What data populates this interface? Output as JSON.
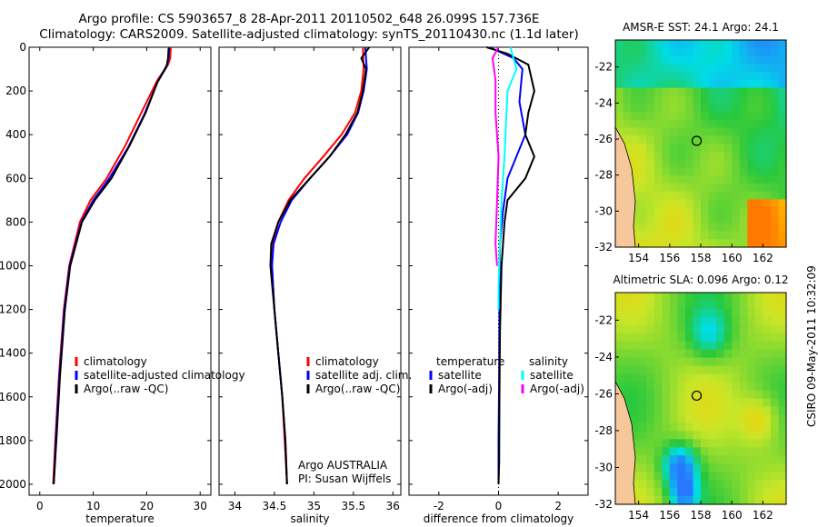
{
  "header": {
    "line1": "Argo profile: CS 5903657_8 28-Apr-2011 20110502_648 26.099S 157.736E",
    "line2": "Climatology: CARS2009. Satellite-adjusted climatology: synTS_20110430.nc (1.1d later)"
  },
  "stamp": "CSIRO 09-May-2011 10:32:09",
  "colors": {
    "climatology": "#ff0000",
    "satellite": "#0000ff",
    "argo": "#000000",
    "salinity_satellite": "#00ffff",
    "salinity_argo": "#ff00ff"
  },
  "chart_data": [
    {
      "type": "line",
      "name": "temperature-panel",
      "xlabel": "temperature",
      "ylabel": "",
      "xlim": [
        -2,
        32
      ],
      "ylim": [
        2050,
        0
      ],
      "xticks": [
        0,
        10,
        20,
        30
      ],
      "yticks": [
        0,
        200,
        400,
        600,
        800,
        1000,
        1200,
        1400,
        1600,
        1800,
        2000
      ],
      "legend": {
        "position": "center-right",
        "entries": [
          "climatology",
          "satellite-adjusted climatology",
          "Argo(..raw -QC)"
        ]
      },
      "series": [
        {
          "name": "climatology",
          "color": "#ff0000",
          "points": [
            [
              24.5,
              0
            ],
            [
              24.4,
              50
            ],
            [
              24.0,
              80
            ],
            [
              22,
              150
            ],
            [
              19,
              300
            ],
            [
              16,
              450
            ],
            [
              12.5,
              600
            ],
            [
              9.5,
              700
            ],
            [
              7.5,
              800
            ],
            [
              5.5,
              1000
            ],
            [
              4.5,
              1200
            ],
            [
              3.6,
              1500
            ],
            [
              2.9,
              1800
            ],
            [
              2.5,
              2000
            ]
          ]
        },
        {
          "name": "satellite-adjusted climatology",
          "color": "#0000ff",
          "points": [
            [
              24.2,
              0
            ],
            [
              24.1,
              50
            ],
            [
              23.8,
              80
            ],
            [
              22,
              160
            ],
            [
              19.5,
              310
            ],
            [
              16.5,
              460
            ],
            [
              13,
              600
            ],
            [
              10,
              700
            ],
            [
              7.8,
              800
            ],
            [
              5.6,
              1000
            ],
            [
              4.6,
              1200
            ],
            [
              3.7,
              1500
            ],
            [
              3.0,
              1800
            ],
            [
              2.6,
              2000
            ]
          ]
        },
        {
          "name": "Argo(..raw -QC)",
          "color": "#000000",
          "points": [
            [
              24.1,
              5
            ],
            [
              24.0,
              50
            ],
            [
              23.7,
              90
            ],
            [
              22,
              160
            ],
            [
              19.8,
              300
            ],
            [
              16.8,
              450
            ],
            [
              13.4,
              600
            ],
            [
              10.3,
              700
            ],
            [
              7.9,
              800
            ],
            [
              5.7,
              1000
            ],
            [
              4.7,
              1200
            ],
            [
              3.8,
              1500
            ],
            [
              3.1,
              1800
            ],
            [
              2.6,
              2000
            ]
          ]
        }
      ]
    },
    {
      "type": "line",
      "name": "salinity-panel",
      "xlabel": "salinity",
      "xlim": [
        33.8,
        36.1
      ],
      "ylim": [
        2050,
        0
      ],
      "xticks": [
        34,
        34.5,
        35,
        35.5,
        36
      ],
      "legend": {
        "position": "center-right",
        "entries": [
          "climatology",
          "satellite adj. clim.",
          "Argo(..raw -QC)"
        ]
      },
      "annotation": [
        "Argo AUSTRALIA",
        "PI: Susan Wijffels"
      ],
      "series": [
        {
          "name": "climatology",
          "color": "#ff0000",
          "points": [
            [
              35.62,
              0
            ],
            [
              35.63,
              100
            ],
            [
              35.6,
              200
            ],
            [
              35.52,
              300
            ],
            [
              35.35,
              400
            ],
            [
              35.12,
              500
            ],
            [
              34.88,
              600
            ],
            [
              34.68,
              700
            ],
            [
              34.55,
              800
            ],
            [
              34.48,
              900
            ],
            [
              34.47,
              1000
            ],
            [
              34.5,
              1200
            ],
            [
              34.55,
              1400
            ],
            [
              34.6,
              1600
            ],
            [
              34.63,
              1800
            ],
            [
              34.66,
              2000
            ]
          ]
        },
        {
          "name": "satellite adj. clim.",
          "color": "#0000ff",
          "points": [
            [
              35.65,
              0
            ],
            [
              35.67,
              100
            ],
            [
              35.63,
              200
            ],
            [
              35.56,
              300
            ],
            [
              35.42,
              400
            ],
            [
              35.2,
              500
            ],
            [
              34.95,
              600
            ],
            [
              34.72,
              700
            ],
            [
              34.58,
              800
            ],
            [
              34.49,
              900
            ],
            [
              34.47,
              1000
            ],
            [
              34.5,
              1200
            ],
            [
              34.55,
              1400
            ],
            [
              34.6,
              1600
            ],
            [
              34.64,
              1800
            ],
            [
              34.66,
              2000
            ]
          ]
        },
        {
          "name": "Argo(..raw -QC)",
          "color": "#000000",
          "points": [
            [
              35.7,
              0
            ],
            [
              35.6,
              50
            ],
            [
              35.66,
              100
            ],
            [
              35.62,
              200
            ],
            [
              35.55,
              300
            ],
            [
              35.4,
              400
            ],
            [
              35.2,
              500
            ],
            [
              34.95,
              600
            ],
            [
              34.7,
              700
            ],
            [
              34.55,
              800
            ],
            [
              34.46,
              900
            ],
            [
              34.45,
              1000
            ],
            [
              34.5,
              1200
            ],
            [
              34.55,
              1400
            ],
            [
              34.6,
              1600
            ],
            [
              34.64,
              1800
            ],
            [
              34.66,
              2000
            ]
          ]
        }
      ]
    },
    {
      "type": "line",
      "name": "difference-panel",
      "xlabel": "difference from climatology",
      "xlim": [
        -3,
        3
      ],
      "ylim": [
        2050,
        0
      ],
      "xticks": [
        -2,
        0,
        2
      ],
      "legend": {
        "position": "center",
        "columns": [
          {
            "title": "temperature",
            "entries": [
              "satellite",
              "Argo(-adj)"
            ]
          },
          {
            "title": "salinity",
            "entries": [
              "satellite",
              "Argo(-adj)"
            ]
          }
        ]
      },
      "series": [
        {
          "name": "temperature satellite",
          "color": "#0000ff",
          "points": [
            [
              -0.3,
              0
            ],
            [
              0.5,
              50
            ],
            [
              0.8,
              100
            ],
            [
              0.7,
              250
            ],
            [
              0.9,
              400
            ],
            [
              0.6,
              500
            ],
            [
              0.3,
              600
            ],
            [
              0.15,
              750
            ],
            [
              0.05,
              900
            ],
            [
              0.03,
              1200
            ],
            [
              0.02,
              1500
            ],
            [
              0.0,
              1800
            ],
            [
              0.0,
              2000
            ]
          ]
        },
        {
          "name": "temperature Argo(-adj)",
          "color": "#000000",
          "points": [
            [
              -0.4,
              0
            ],
            [
              0.3,
              30
            ],
            [
              1.0,
              80
            ],
            [
              1.2,
              200
            ],
            [
              1.0,
              300
            ],
            [
              0.9,
              400
            ],
            [
              1.2,
              500
            ],
            [
              0.9,
              600
            ],
            [
              0.3,
              700
            ],
            [
              0.2,
              800
            ],
            [
              0.1,
              1000
            ],
            [
              0.05,
              1300
            ],
            [
              0.03,
              1600
            ],
            [
              0.02,
              1900
            ],
            [
              0.0,
              2000
            ]
          ]
        },
        {
          "name": "salinity satellite",
          "color": "#00ffff",
          "points": [
            [
              0.4,
              0
            ],
            [
              0.6,
              100
            ],
            [
              0.3,
              200
            ],
            [
              0.25,
              350
            ],
            [
              0.2,
              500
            ],
            [
              0.1,
              700
            ],
            [
              0.05,
              900
            ],
            [
              0.0,
              1100
            ],
            [
              0.0,
              1200
            ]
          ]
        },
        {
          "name": "salinity Argo(-adj)",
          "color": "#ff00ff",
          "points": [
            [
              0.0,
              0
            ],
            [
              -0.2,
              50
            ],
            [
              -0.1,
              150
            ],
            [
              -0.1,
              300
            ],
            [
              0.0,
              500
            ],
            [
              -0.05,
              700
            ],
            [
              -0.1,
              900
            ],
            [
              -0.05,
              1000
            ]
          ]
        }
      ]
    },
    {
      "type": "heatmap",
      "name": "sst-map",
      "title": "AMSR-E SST: 24.1 Argo: 24.1",
      "xticks": [
        154,
        156,
        158,
        160,
        162
      ],
      "yticks": [
        -22,
        -24,
        -26,
        -28,
        -30,
        -32
      ],
      "xlim": [
        152.5,
        163.5
      ],
      "ylim": [
        -32,
        -20.5
      ],
      "marker": [
        157.736,
        -26.099
      ]
    },
    {
      "type": "heatmap",
      "name": "sla-map",
      "title": "Altimetric SLA: 0.096 Argo: 0.12",
      "xticks": [
        154,
        156,
        158,
        160,
        162
      ],
      "yticks": [
        -22,
        -24,
        -26,
        -28,
        -30,
        -32
      ],
      "xlim": [
        152.5,
        163.5
      ],
      "ylim": [
        -32,
        -20.5
      ],
      "marker": [
        157.736,
        -26.099
      ]
    }
  ]
}
